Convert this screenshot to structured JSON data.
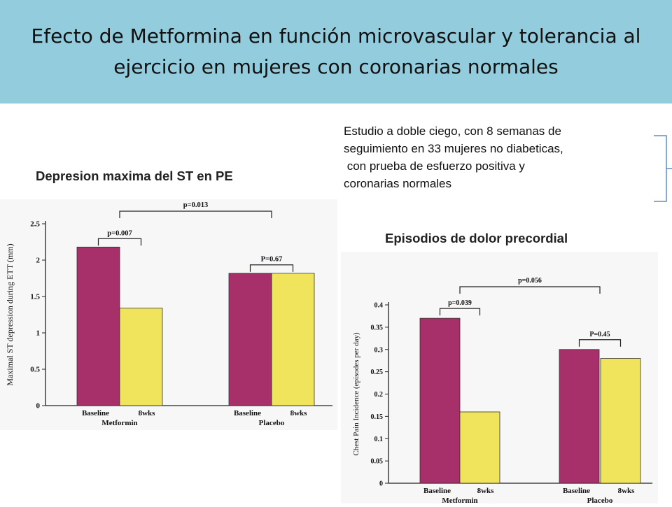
{
  "slide": {
    "title_lines": [
      "Efecto de Metformina en función microvascular y tolerancia al",
      "ejercicio en mujeres con coronarias normales"
    ],
    "description_lines": [
      "Estudio a doble ciego, con 8 semanas de",
      "seguimiento en 33 mujeres no diabeticas,",
      " con prueba de esfuerzo positiva y",
      "coronarias normales"
    ],
    "left_chart_heading": "Depresion maxima del ST en PE",
    "right_chart_heading": "Episodios de dolor precordial",
    "colors": {
      "header_bg": "#93cddd",
      "baseline": "#a8306a",
      "wks8": "#f0e45c"
    }
  },
  "chart_data": [
    {
      "type": "bar",
      "ylabel": "Maximal ST depression during ETT (mm)",
      "ylim": [
        0,
        2.5
      ],
      "yticks": [
        "0",
        "0.5",
        "1",
        "1.5",
        "2",
        "2.5"
      ],
      "group_labels": [
        "Metformin",
        "Placebo"
      ],
      "bar_labels": [
        "Baseline",
        "8wks",
        "Baseline",
        "8wks"
      ],
      "values": [
        2.18,
        1.34,
        1.82,
        1.82
      ],
      "p_within": [
        "p=0.007",
        "P=0.67"
      ],
      "p_between": "p=0.013"
    },
    {
      "type": "bar",
      "ylabel": "Chest Pain Incidence (episodes per day)",
      "ylim": [
        0,
        0.4
      ],
      "yticks": [
        "0",
        "0.05",
        "0.1",
        "0.15",
        "0.2",
        "0.25",
        "0.3",
        "0.35",
        "0.4"
      ],
      "group_labels": [
        "Metformin",
        "Placebo"
      ],
      "bar_labels": [
        "Baseline",
        "8wks",
        "Baseline",
        "8wks"
      ],
      "values": [
        0.37,
        0.16,
        0.3,
        0.28
      ],
      "p_within": [
        "p=0.039",
        "P=0.45"
      ],
      "p_between": "p=0.056"
    }
  ]
}
